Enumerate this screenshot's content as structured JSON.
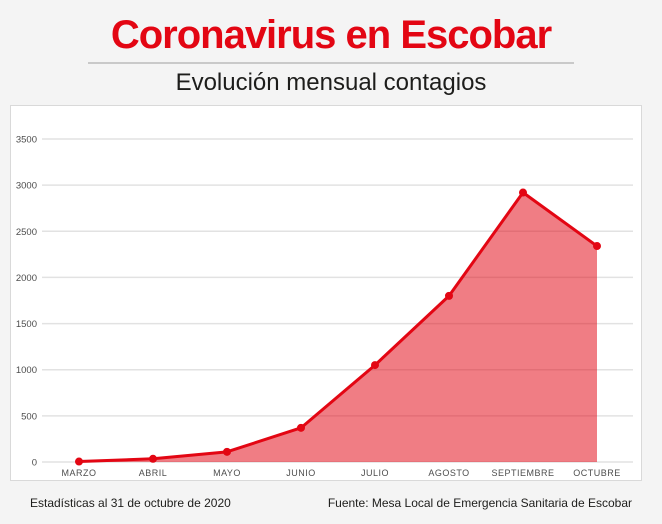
{
  "page": {
    "title": "Coronavirus en Escobar",
    "subtitle": "Evolución mensual contagios",
    "footer_left": "Estadísticas al 31 de octubre de 2020",
    "footer_right": "Fuente: Mesa Local de Emergencia Sanitaria de Escobar"
  },
  "colors": {
    "title_red": "#e30613",
    "line_red": "#e30613",
    "fill_red": "#e30613",
    "fill_opacity": 0.52,
    "gridline": "#e2e2e2",
    "axis_label": "#4d4d4d",
    "panel_background": "#ffffff",
    "page_background": "#f4f4f4",
    "text_dark": "#1d1d1b",
    "divider": "#c9c9c9"
  },
  "chart_data": {
    "type": "area",
    "categories": [
      "MARZO",
      "ABRIL",
      "MAYO",
      "JUNIO",
      "JULIO",
      "AGOSTO",
      "SEPTIEMBRE",
      "OCTUBRE"
    ],
    "values": [
      5,
      35,
      110,
      370,
      1050,
      1800,
      2920,
      2340
    ],
    "title": "Evolución mensual contagios",
    "xlabel": "",
    "ylabel": "",
    "ylim": [
      0,
      3500
    ],
    "yticks": [
      0,
      500,
      1000,
      1500,
      2000,
      2500,
      3000,
      3500
    ],
    "grid": true,
    "legend": false,
    "marker": "circle"
  }
}
